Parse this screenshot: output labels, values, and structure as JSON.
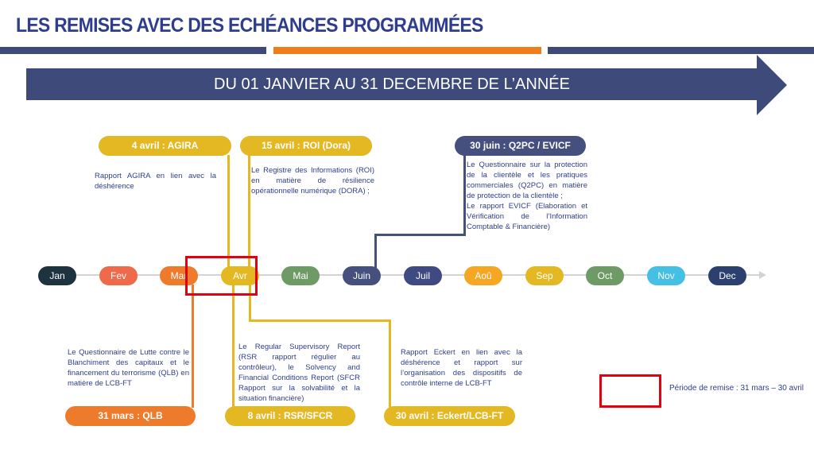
{
  "title": "LES REMISES AVEC DES ECHÉANCES PROGRAMMÉES",
  "banner": "DU 01 JANVIER AU 31 DECEMBRE DE L’ANNÉE",
  "colors": {
    "navy": "#3d4a7a",
    "orange": "#f07d1c",
    "yellow": "#e6b800",
    "red": "#e3000f"
  },
  "months": [
    {
      "label": "Jan",
      "color": "#1e3340"
    },
    {
      "label": "Fev",
      "color": "#ef6a4a"
    },
    {
      "label": "Mar",
      "color": "#ee7b2b"
    },
    {
      "label": "Avr",
      "color": "#e4b823"
    },
    {
      "label": "Mai",
      "color": "#6e9a66"
    },
    {
      "label": "Juin",
      "color": "#45507e"
    },
    {
      "label": "Juil",
      "color": "#3f4a82"
    },
    {
      "label": "Aoû",
      "color": "#f5a623"
    },
    {
      "label": "Sep",
      "color": "#e4b823"
    },
    {
      "label": "Oct",
      "color": "#6e9a66"
    },
    {
      "label": "Nov",
      "color": "#45c0e4"
    },
    {
      "label": "Dec",
      "color": "#2c4070"
    }
  ],
  "events": {
    "agira": {
      "badge": "4 avril : AGIRA",
      "desc": "Rapport AGIRA en lien avec la déshérence"
    },
    "roi": {
      "badge": "15 avril : ROI (Dora)",
      "desc": "Le Registre des Informations (ROI) en matière de résilience opérationnelle numérique (DORA) ;"
    },
    "q2pc": {
      "badge": "30 juin : Q2PC / EVICF",
      "desc1": "Le Questionnaire sur la protection de la clientèle et les pratiques commerciales (Q2PC) en matière de protection de la clientèle ;",
      "desc2": "Le rapport EVICF (Elaboration et Vérification de l’Information Comptable & Financière)"
    },
    "qlb": {
      "badge": "31 mars : QLB",
      "desc": "Le Questionnaire de Lutte contre le Blanchiment des capitaux et le financement du terrorisme (QLB) en matière de LCB-FT"
    },
    "rsr": {
      "badge": "8 avril : RSR/SFCR",
      "desc": "Le Regular Supervisory Report (RSR rapport régulier au contrôleur), le Solvency and Financial Conditions Report (SFCR Rapport sur la solvabilité et la situation financière)"
    },
    "eckert": {
      "badge": "30 avril : Eckert/LCB-FT",
      "desc": "Rapport Eckert en lien avec la déshérence et rapport sur l’organisation des dispositifs de contrôle interne de LCB-FT"
    }
  },
  "legend": "Période de remise : 31 mars – 30 avril"
}
